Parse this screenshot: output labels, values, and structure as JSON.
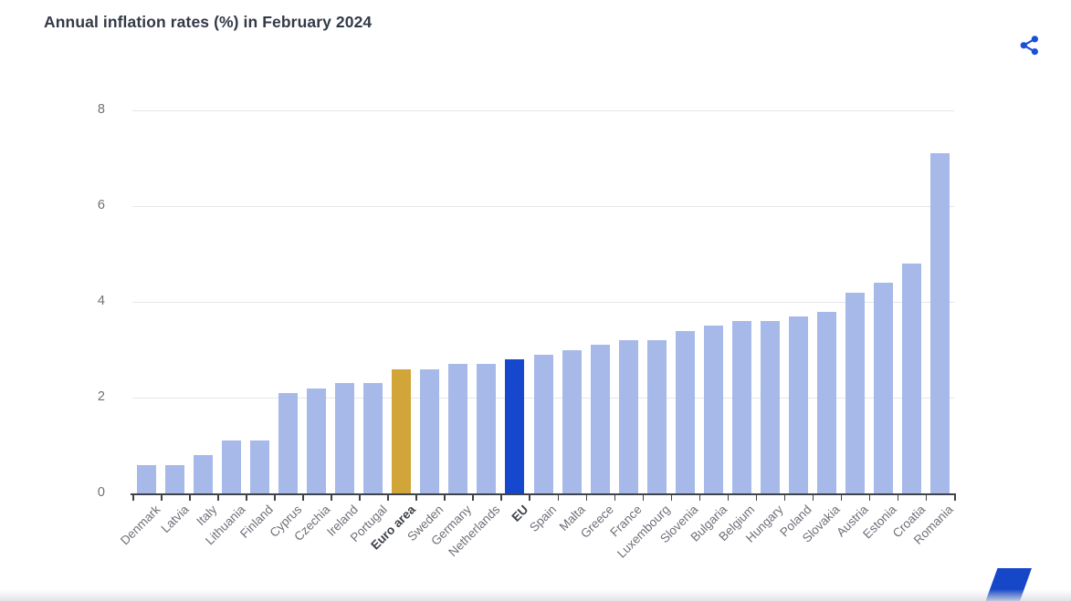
{
  "chart_data": {
    "type": "bar",
    "title": "Annual inflation rates (%) in February 2024",
    "categories": [
      "Denmark",
      "Latvia",
      "Italy",
      "Lithuania",
      "Finland",
      "Cyprus",
      "Czechia",
      "Ireland",
      "Portugal",
      "Euro area",
      "Sweden",
      "Germany",
      "Netherlands",
      "EU",
      "Spain",
      "Malta",
      "Greece",
      "France",
      "Luxembourg",
      "Slovenia",
      "Bulgaria",
      "Belgium",
      "Hungary",
      "Poland",
      "Slovakia",
      "Austria",
      "Estonia",
      "Croatia",
      "Romania"
    ],
    "values": [
      0.6,
      0.6,
      0.8,
      1.1,
      1.1,
      2.1,
      2.2,
      2.3,
      2.3,
      2.6,
      2.6,
      2.7,
      2.7,
      2.8,
      2.9,
      3.0,
      3.1,
      3.2,
      3.2,
      3.4,
      3.5,
      3.6,
      3.6,
      3.7,
      3.8,
      4.2,
      4.4,
      4.8,
      7.1
    ],
    "xlabel": "",
    "ylabel": "",
    "ylim": [
      0,
      8
    ],
    "yticks": [
      0,
      2,
      4,
      6,
      8
    ],
    "grid": true,
    "legend": false,
    "bar_color": "#a6b9e8",
    "highlight_colors": {
      "Euro area": "#d1a53a",
      "EU": "#1548cc"
    },
    "bold_categories": [
      "Euro area",
      "EU"
    ]
  },
  "icons": {
    "share": "share-icon",
    "share_color": "#1b4fd8"
  },
  "decoration": {
    "corner_accent_color": "#1547c8"
  }
}
